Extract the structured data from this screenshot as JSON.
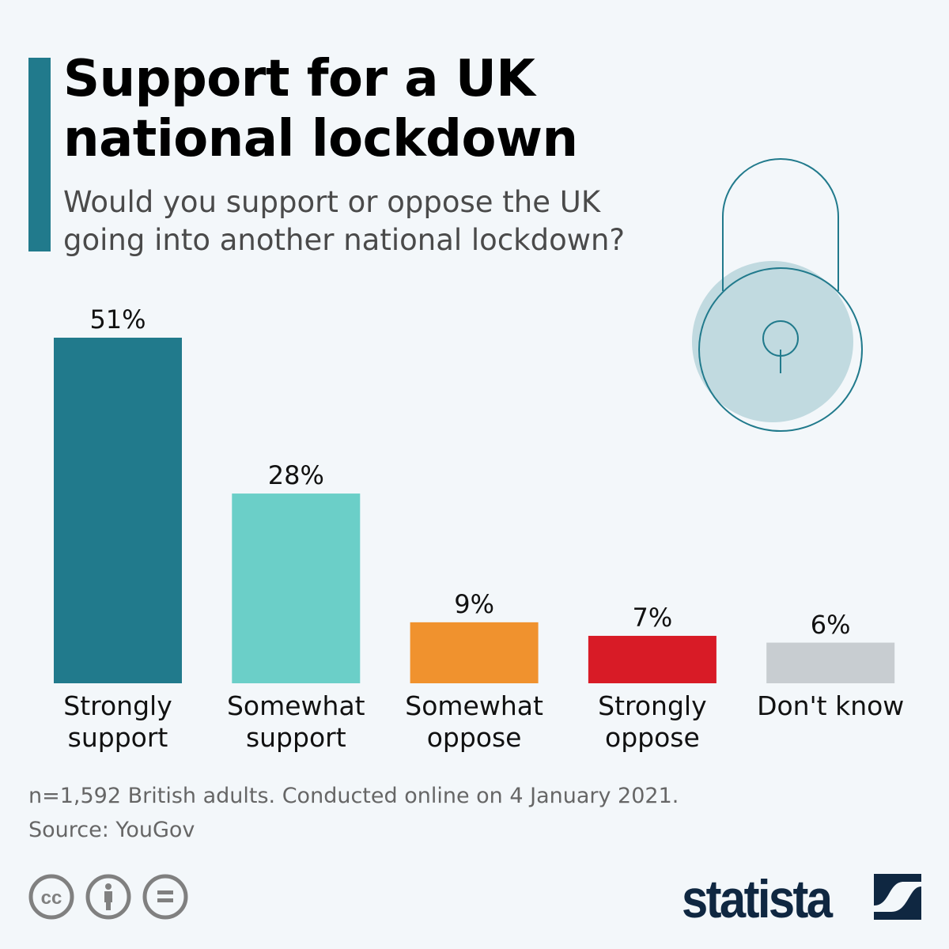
{
  "header": {
    "title_line1": "Support for a UK",
    "title_line2": "national lockdown",
    "subtitle_line1": "Would you support or oppose the UK",
    "subtitle_line2": "going into another national lockdown?"
  },
  "chart_data": {
    "type": "bar",
    "categories": [
      [
        "Strongly",
        "support"
      ],
      [
        "Somewhat",
        "support"
      ],
      [
        "Somewhat",
        "oppose"
      ],
      [
        "Strongly",
        "oppose"
      ],
      [
        "Don't know"
      ]
    ],
    "values": [
      51,
      28,
      9,
      7,
      6
    ],
    "value_labels": [
      "51%",
      "28%",
      "9%",
      "7%",
      "6%"
    ],
    "colors": [
      "#217a8c",
      "#6bcfc8",
      "#f0922e",
      "#d81b26",
      "#c8cdd1"
    ],
    "unit": "%",
    "ylim": [
      0,
      51
    ],
    "grid": false,
    "xlabel": "",
    "ylabel": ""
  },
  "footer": {
    "note": "n=1,592 British adults. Conducted online on 4 January 2021.",
    "source": "Source: YouGov"
  },
  "brand": {
    "name": "statista"
  },
  "icons": [
    "padlock-icon",
    "creative-commons-icon",
    "attribution-icon",
    "no-derivatives-icon",
    "statista-logo-icon"
  ]
}
